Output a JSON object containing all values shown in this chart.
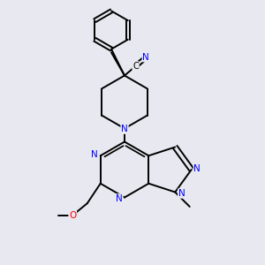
{
  "bg_color": "#e8e8f0",
  "bond_color": "#000000",
  "n_color": "#0000ff",
  "o_color": "#ff0000",
  "lw": 1.4,
  "lw_double_inner": 1.2,
  "figsize": [
    3.0,
    3.0
  ],
  "dpi": 100,
  "xlim": [
    0,
    10
  ],
  "ylim": [
    0,
    10
  ],
  "font_size": 7.5
}
